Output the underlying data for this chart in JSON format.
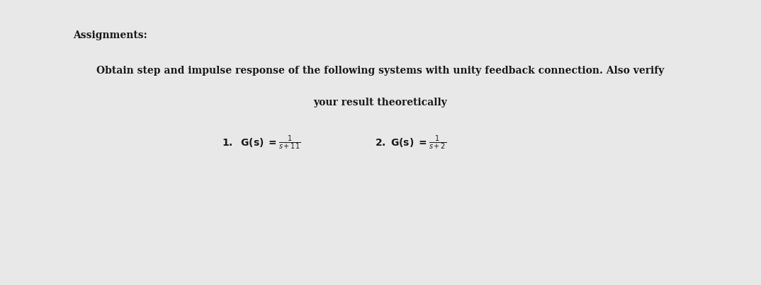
{
  "background_color": "#e8e8e8",
  "page_background": "#ffffff",
  "title_text": "Assignments:",
  "title_fontsize": 10,
  "body_line1": "Obtain step and impulse response of the following systems with unity feedback connection. Also verify",
  "body_line2": "your result theoretically",
  "body_fontsize": 10,
  "eq_fontsize": 9,
  "text_color": "#1a1a1a",
  "fig_width": 10.74,
  "fig_height": 4.03,
  "dpi": 100
}
